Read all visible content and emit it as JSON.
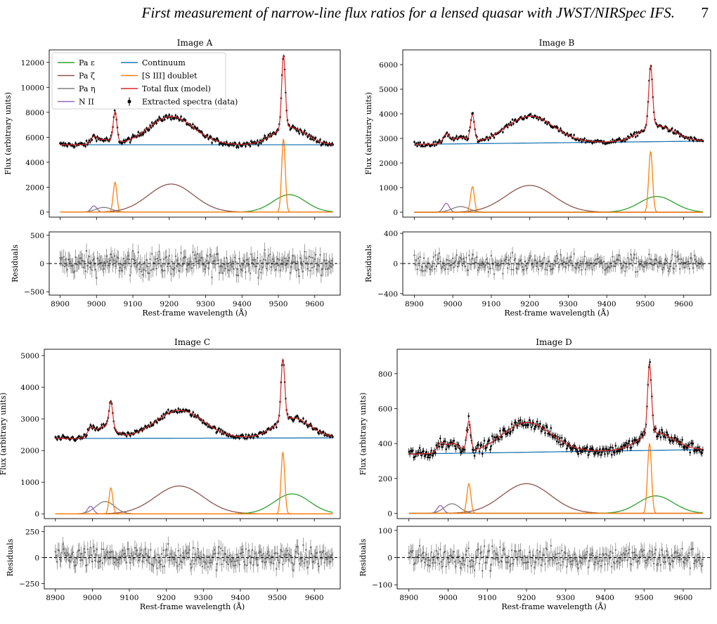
{
  "header": {
    "running_title": "First measurement of narrow-line flux ratios for a lensed quasar with JWST/NIRSpec IFS.",
    "page_number": "7"
  },
  "legend": {
    "entries": [
      {
        "label": "Pa ε",
        "color": "#2ca02c",
        "kind": "line"
      },
      {
        "label": "Pa ζ",
        "color": "#8c564b",
        "kind": "line"
      },
      {
        "label": "Pa η",
        "color": "#7f7f7f",
        "kind": "line"
      },
      {
        "label": "N II",
        "color": "#9467bd",
        "kind": "line"
      },
      {
        "label": "Continuum",
        "color": "#1f77b4",
        "kind": "line"
      },
      {
        "label": "[S III] doublet",
        "color": "#ff7f0e",
        "kind": "line"
      },
      {
        "label": "Total flux (model)",
        "color": "#d62728",
        "kind": "line"
      },
      {
        "label": "Extracted spectra (data)",
        "color": "#000000",
        "kind": "errorbar"
      }
    ]
  },
  "chart_data": [
    {
      "type": "line",
      "title": "Image A",
      "xlabel": "Rest-frame wavelength (Å)",
      "ylabel": "Flux (arbitrary units)",
      "xlim": [
        8870,
        9670
      ],
      "ylim": [
        -400,
        13000
      ],
      "yticks": [
        0,
        2000,
        4000,
        6000,
        8000,
        10000,
        12000
      ],
      "xticks": [
        8900,
        9000,
        9100,
        9200,
        9300,
        9400,
        9500,
        9600
      ],
      "continuum": [
        5400,
        5400
      ],
      "components": {
        "pa_epsilon": {
          "center": 9530,
          "sigma": 45,
          "amp": 1400
        },
        "pa_zeta": {
          "center": 9205,
          "sigma": 62,
          "amp": 2250
        },
        "pa_eta": {
          "center": 9020,
          "sigma": 22,
          "amp": 380
        },
        "n_ii": {
          "center": 8993,
          "sigma": 8,
          "amp": 500
        },
        "s_iii_1": {
          "center": 9051,
          "sigma": 5,
          "amp": 2400
        },
        "s_iii_2": {
          "center": 9514,
          "sigma": 5,
          "amp": 5850
        }
      },
      "noise": 160,
      "residuals": {
        "ylabel": "Residuals",
        "ylim": [
          -560,
          560
        ],
        "yticks": [
          -500,
          0,
          500
        ],
        "scale": 140
      }
    },
    {
      "type": "line",
      "title": "Image B",
      "xlabel": "Rest-frame wavelength (Å)",
      "ylabel": "Flux (arbitrary units)",
      "xlim": [
        8870,
        9670
      ],
      "ylim": [
        -200,
        6600
      ],
      "yticks": [
        0,
        1000,
        2000,
        3000,
        4000,
        5000,
        6000
      ],
      "xticks": [
        8900,
        9000,
        9100,
        9200,
        9300,
        9400,
        9500,
        9600
      ],
      "continuum": [
        2760,
        2890
      ],
      "components": {
        "pa_epsilon": {
          "center": 9530,
          "sigma": 45,
          "amp": 640
        },
        "pa_zeta": {
          "center": 9200,
          "sigma": 62,
          "amp": 1090
        },
        "pa_eta": {
          "center": 9020,
          "sigma": 22,
          "amp": 230
        },
        "n_ii": {
          "center": 8983,
          "sigma": 8,
          "amp": 360
        },
        "s_iii_1": {
          "center": 9051,
          "sigma": 5,
          "amp": 1040
        },
        "s_iii_2": {
          "center": 9514,
          "sigma": 5,
          "amp": 2470
        }
      },
      "noise": 70,
      "residuals": {
        "ylabel": "Residuals",
        "ylim": [
          -420,
          420
        ],
        "yticks": [
          -400,
          0,
          400
        ],
        "scale": 80
      }
    },
    {
      "type": "line",
      "title": "Image C",
      "xlabel": "Rest-frame wavelength (Å)",
      "ylabel": "Flux (arbitrary units)",
      "xlim": [
        8870,
        9670
      ],
      "ylim": [
        -150,
        5200
      ],
      "yticks": [
        0,
        1000,
        2000,
        3000,
        4000,
        5000
      ],
      "xticks": [
        8900,
        9000,
        9100,
        9200,
        9300,
        9400,
        9500,
        9600
      ],
      "continuum": [
        2380,
        2400
      ],
      "components": {
        "pa_epsilon": {
          "center": 9540,
          "sigma": 48,
          "amp": 630
        },
        "pa_zeta": {
          "center": 9235,
          "sigma": 65,
          "amp": 880
        },
        "pa_eta": {
          "center": 9035,
          "sigma": 25,
          "amp": 390
        },
        "n_ii": {
          "center": 8995,
          "sigma": 8,
          "amp": 240
        },
        "s_iii_1": {
          "center": 9050,
          "sigma": 5,
          "amp": 820
        },
        "s_iii_2": {
          "center": 9515,
          "sigma": 5,
          "amp": 1950
        }
      },
      "noise": 60,
      "residuals": {
        "ylabel": "Residuals",
        "ylim": [
          -300,
          300
        ],
        "yticks": [
          -250,
          0,
          250
        ],
        "scale": 75
      }
    },
    {
      "type": "line",
      "title": "Image D",
      "xlabel": "Rest-frame wavelength (Å)",
      "ylabel": "Flux (arbitrary units)",
      "xlim": [
        8870,
        9670
      ],
      "ylim": [
        -30,
        940
      ],
      "yticks": [
        0,
        200,
        400,
        600,
        800
      ],
      "xticks": [
        8900,
        9000,
        9100,
        9200,
        9300,
        9400,
        9500,
        9600
      ],
      "continuum": [
        340,
        365
      ],
      "components": {
        "pa_epsilon": {
          "center": 9530,
          "sigma": 45,
          "amp": 100
        },
        "pa_zeta": {
          "center": 9200,
          "sigma": 62,
          "amp": 170
        },
        "pa_eta": {
          "center": 9010,
          "sigma": 20,
          "amp": 55
        },
        "n_ii": {
          "center": 8980,
          "sigma": 8,
          "amp": 45
        },
        "s_iii_1": {
          "center": 9053,
          "sigma": 5,
          "amp": 170
        },
        "s_iii_2": {
          "center": 9514,
          "sigma": 5,
          "amp": 400
        }
      },
      "noise": 22,
      "residuals": {
        "ylabel": "Residuals",
        "ylim": [
          -115,
          115
        ],
        "yticks": [
          -100,
          0,
          100
        ],
        "scale": 28
      }
    }
  ]
}
